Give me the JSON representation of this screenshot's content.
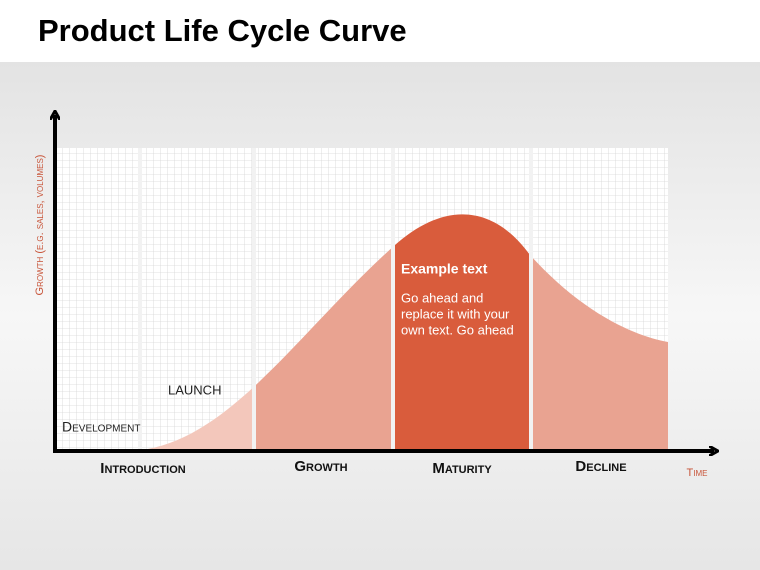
{
  "header": {
    "title": "Product Life Cycle Curve"
  },
  "axes": {
    "y_label": "Growth (e.g. sales, volumes)",
    "x_label": "Time"
  },
  "annotations": {
    "development": "Development",
    "launch": "LAUNCH"
  },
  "stages": [
    "Introduction",
    "Growth",
    "Maturity",
    "Decline"
  ],
  "text_box": {
    "heading": "Example text",
    "lines": [
      "Go ahead and",
      "replace it with your",
      "own text. Go ahead"
    ]
  }
}
